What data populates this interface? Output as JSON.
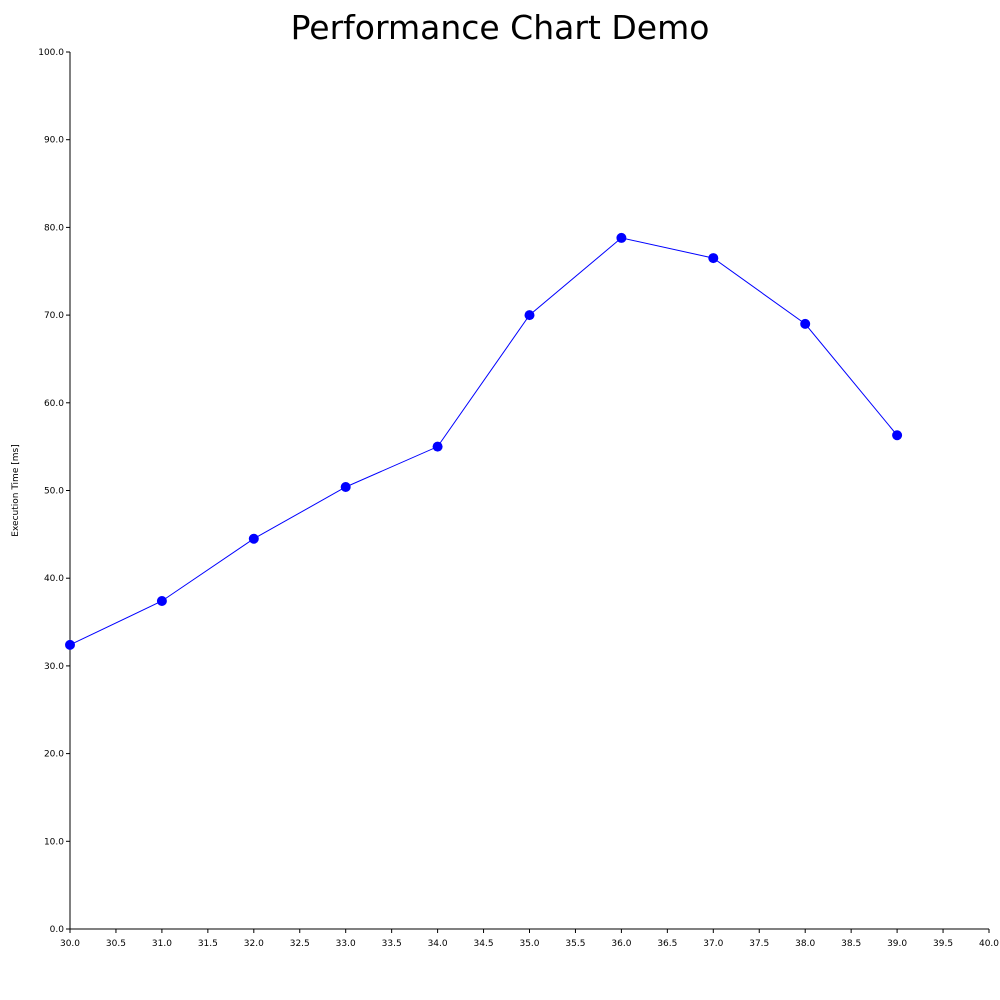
{
  "chart_data": {
    "type": "line",
    "title": "Performance Chart Demo",
    "xlabel": "",
    "ylabel": "Execution Time [ms]",
    "xlim": [
      30.0,
      40.0
    ],
    "ylim": [
      0.0,
      100.0
    ],
    "x_ticks": [
      "30.0",
      "30.5",
      "31.0",
      "31.5",
      "32.0",
      "32.5",
      "33.0",
      "33.5",
      "34.0",
      "34.5",
      "35.0",
      "35.5",
      "36.0",
      "36.5",
      "37.0",
      "37.5",
      "38.0",
      "38.5",
      "39.0",
      "39.5",
      "40.0"
    ],
    "y_ticks": [
      "0.0",
      "10.0",
      "20.0",
      "30.0",
      "40.0",
      "50.0",
      "60.0",
      "70.0",
      "80.0",
      "90.0",
      "100.0"
    ],
    "grid": false,
    "series": [
      {
        "color": "#0000ff",
        "x": [
          30,
          31,
          32,
          33,
          34,
          35,
          36,
          37,
          38,
          39
        ],
        "y": [
          32.4,
          37.4,
          44.5,
          50.4,
          55.0,
          70.0,
          78.8,
          76.5,
          69.0,
          56.3
        ]
      }
    ]
  }
}
